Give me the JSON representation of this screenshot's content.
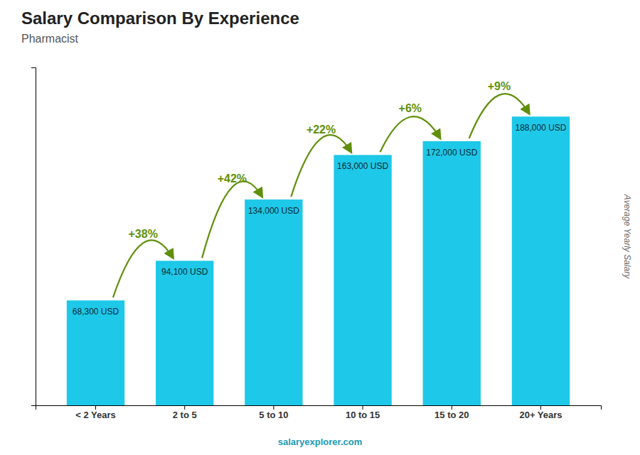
{
  "chart_data": {
    "type": "bar",
    "title": "Salary Comparison By Experience",
    "subtitle": "Pharmacist",
    "ylabel": "Average Yearly Salary",
    "categories": [
      "< 2 Years",
      "2 to 5",
      "5 to 10",
      "10 to 15",
      "15 to 20",
      "20+ Years"
    ],
    "values": [
      68300,
      94100,
      134000,
      163000,
      172000,
      188000
    ],
    "value_labels": [
      "68,300 USD",
      "94,100 USD",
      "134,000 USD",
      "163,000 USD",
      "172,000 USD",
      "188,000 USD"
    ],
    "data_labels": true,
    "annotations": [
      "+38%",
      "+42%",
      "+22%",
      "+6%",
      "+9%"
    ],
    "source": "salaryexplorer.com",
    "color": "#1ec8e8",
    "ylim": [
      0,
      220000
    ],
    "tick_labels": "x",
    "grid": false
  }
}
